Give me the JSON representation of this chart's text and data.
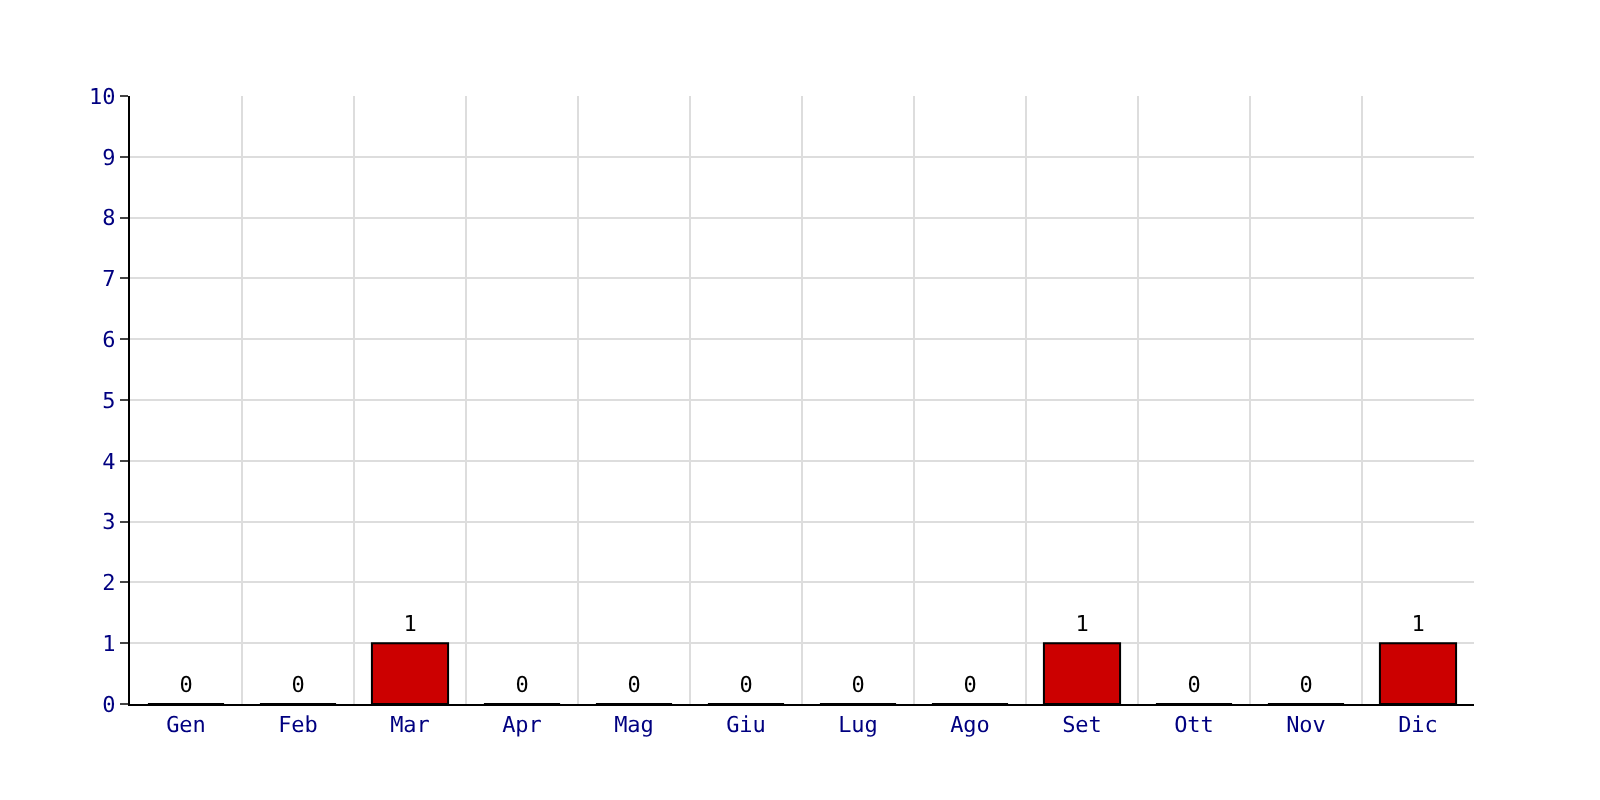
{
  "chart_data": {
    "type": "bar",
    "categories": [
      "Gen",
      "Feb",
      "Mar",
      "Apr",
      "Mag",
      "Giu",
      "Lug",
      "Ago",
      "Set",
      "Ott",
      "Nov",
      "Dic"
    ],
    "values": [
      0,
      0,
      1,
      0,
      0,
      0,
      0,
      0,
      1,
      0,
      0,
      1
    ],
    "color": "#cc0000",
    "ylim": [
      0,
      10
    ],
    "yticks": [
      0,
      1,
      2,
      3,
      4,
      5,
      6,
      7,
      8,
      9,
      10
    ],
    "grid": true,
    "data_labels": true
  }
}
